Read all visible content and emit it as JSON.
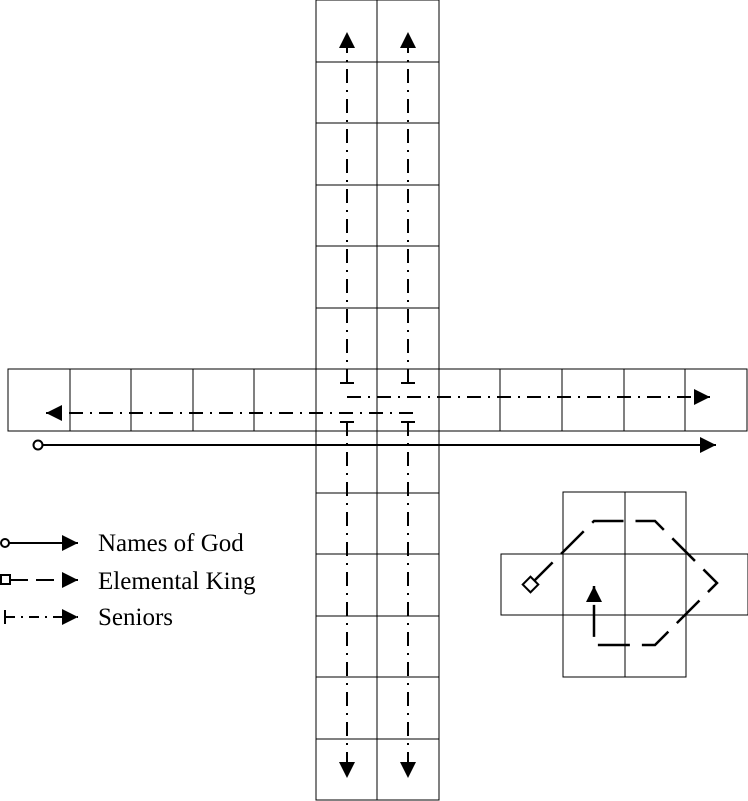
{
  "legend": {
    "names_of_god": "Names of God",
    "elemental_king": "Elemental King",
    "seniors": "Seniors"
  },
  "colors": {
    "line": "#000000",
    "background": "#ffffff"
  },
  "icons": {
    "names_of_god_marker": "open-circle",
    "elemental_king_marker": "open-square",
    "seniors_marker": "short-bar",
    "arrowhead": "filled-triangle"
  }
}
